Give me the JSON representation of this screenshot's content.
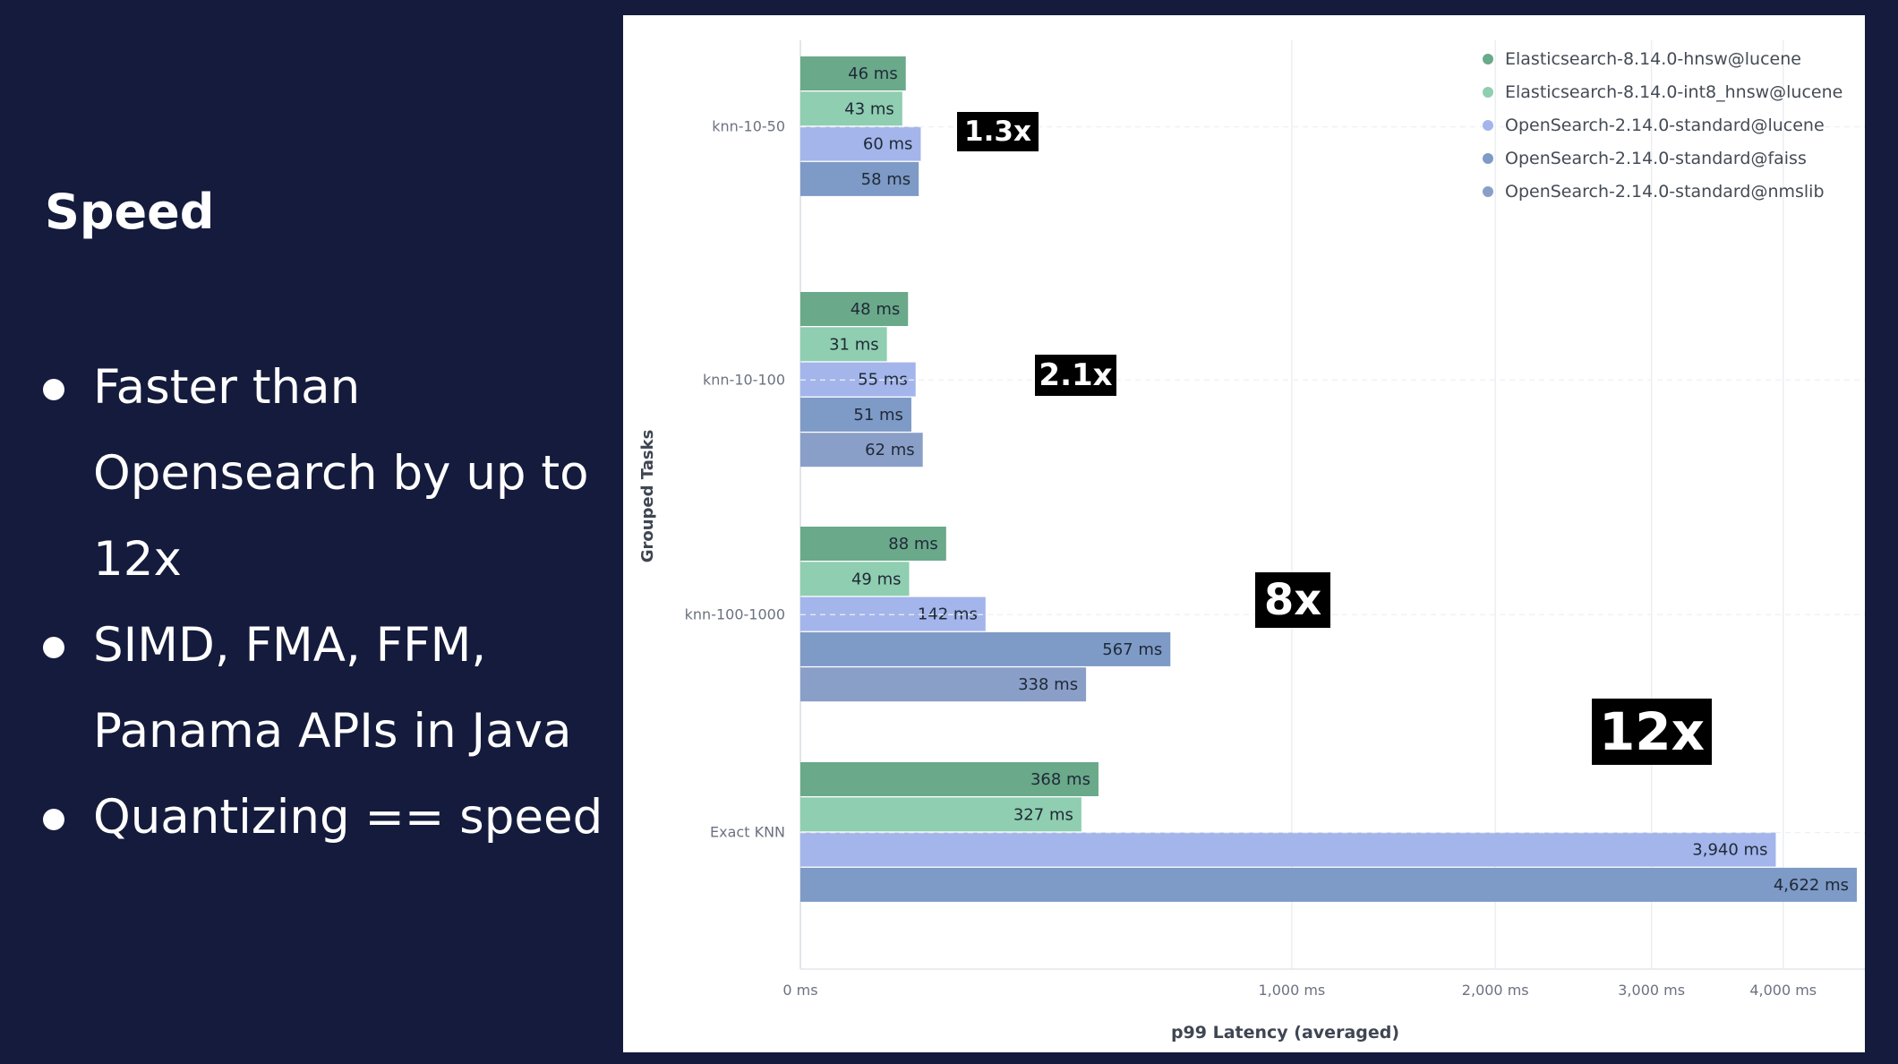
{
  "slide": {
    "title": "Speed",
    "bullets": [
      {
        "lines": [
          "Faster than",
          "Opensearch by up to",
          "12x"
        ]
      },
      {
        "lines": [
          "SIMD, FMA, FFM,",
          "Panama APIs in Java"
        ]
      },
      {
        "lines": [
          "Quantizing == speed"
        ]
      }
    ]
  },
  "chart_data": {
    "type": "bar",
    "orientation": "horizontal",
    "xscale": "sqrt",
    "title": "",
    "xlabel": "p99 Latency (averaged)",
    "ylabel": "Grouped Tasks",
    "xlim": [
      0,
      4622
    ],
    "x_ticks": [
      0,
      1000,
      2000,
      3000,
      4000
    ],
    "x_tick_labels": [
      "0 ms",
      "1,000 ms",
      "2,000 ms",
      "3,000 ms",
      "4,000 ms"
    ],
    "categories": [
      "knn-10-50",
      "knn-10-100",
      "knn-100-1000",
      "Exact KNN"
    ],
    "series": [
      {
        "name": "Elasticsearch-8.14.0-hnsw@lucene",
        "color": "#6aa98a",
        "values": [
          46,
          48,
          88,
          368
        ],
        "labels": [
          "46 ms",
          "48 ms",
          "88 ms",
          "368 ms"
        ]
      },
      {
        "name": "Elasticsearch-8.14.0-int8_hnsw@lucene",
        "color": "#8fceb0",
        "values": [
          43,
          31,
          49,
          327
        ],
        "labels": [
          "43 ms",
          "31 ms",
          "49 ms",
          "327 ms"
        ]
      },
      {
        "name": "OpenSearch-2.14.0-standard@lucene",
        "color": "#a3b5ea",
        "values": [
          60,
          55,
          142,
          3940
        ],
        "labels": [
          "60 ms",
          "55 ms",
          "142 ms",
          "3,940 ms"
        ]
      },
      {
        "name": "OpenSearch-2.14.0-standard@faiss",
        "color": "#7e9ac6",
        "values": [
          58,
          51,
          567,
          4622
        ],
        "labels": [
          "58 ms",
          "51 ms",
          "567 ms",
          "4,622 ms"
        ]
      },
      {
        "name": "OpenSearch-2.14.0-standard@nmslib",
        "color": "#8a9fc8",
        "values": [
          null,
          62,
          338,
          null
        ],
        "labels": [
          null,
          "62 ms",
          "338 ms",
          null
        ]
      }
    ],
    "legend_position": "top-right",
    "annotations": [
      "1.3x",
      "2.1x",
      "8x",
      "12x"
    ]
  }
}
